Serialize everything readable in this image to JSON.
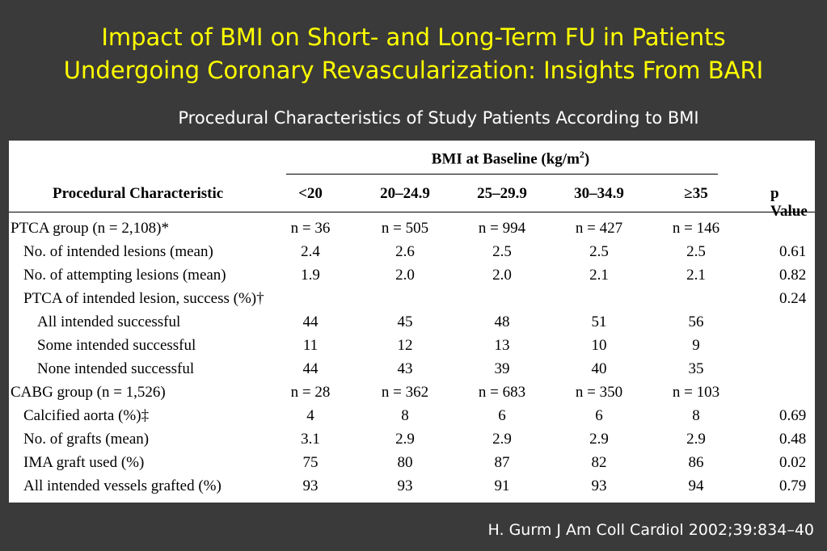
{
  "slide": {
    "title_line1": "Impact of BMI on Short- and Long-Term FU in Patients",
    "title_line2": "Undergoing Coronary Revascularization:  Insights From BARI",
    "subtitle": "Procedural Characteristics of Study Patients According to BMI",
    "citation": "H. Gurm J Am Coll Cardiol 2002;39:834–40",
    "colors": {
      "background": "#3a3a3a",
      "title": "#ffff00",
      "text": "#ffffff"
    }
  },
  "table": {
    "group_header": "BMI at Baseline (kg/m",
    "group_header_sup": "2",
    "group_header_end": ")",
    "first_col_header": "Procedural Characteristic",
    "columns": [
      "<20",
      "20–24.9",
      "25–29.9",
      "30–34.9",
      "≥35"
    ],
    "pvalue_header": "p Value",
    "rows": [
      {
        "label": "PTCA group (n = 2,108)*",
        "indent": 0,
        "values": [
          "n = 36",
          "n = 505",
          "n = 994",
          "n = 427",
          "n = 146"
        ],
        "p": ""
      },
      {
        "label": "No. of intended lesions (mean)",
        "indent": 1,
        "values": [
          "2.4",
          "2.6",
          "2.5",
          "2.5",
          "2.5"
        ],
        "p": "0.61"
      },
      {
        "label": "No. of attempting lesions (mean)",
        "indent": 1,
        "values": [
          "1.9",
          "2.0",
          "2.0",
          "2.1",
          "2.1"
        ],
        "p": "0.82"
      },
      {
        "label": "PTCA of intended lesion, success (%)†",
        "indent": 1,
        "values": [
          "",
          "",
          "",
          "",
          ""
        ],
        "p": "0.24"
      },
      {
        "label": "All intended successful",
        "indent": 2,
        "values": [
          "44",
          "45",
          "48",
          "51",
          "56"
        ],
        "p": ""
      },
      {
        "label": "Some intended successful",
        "indent": 2,
        "values": [
          "11",
          "12",
          "13",
          "10",
          "9"
        ],
        "p": ""
      },
      {
        "label": "None intended successful",
        "indent": 2,
        "values": [
          "44",
          "43",
          "39",
          "40",
          "35"
        ],
        "p": ""
      },
      {
        "label": "CABG group (n = 1,526)",
        "indent": 0,
        "values": [
          "n = 28",
          "n = 362",
          "n = 683",
          "n = 350",
          "n = 103"
        ],
        "p": ""
      },
      {
        "label": "Calcified aorta (%)‡",
        "indent": 1,
        "values": [
          "4",
          "8",
          "6",
          "6",
          "8"
        ],
        "p": "0.69"
      },
      {
        "label": "No. of grafts (mean)",
        "indent": 1,
        "values": [
          "3.1",
          "2.9",
          "2.9",
          "2.9",
          "2.9"
        ],
        "p": "0.48"
      },
      {
        "label": "IMA graft used (%)",
        "indent": 1,
        "values": [
          "75",
          "80",
          "87",
          "82",
          "86"
        ],
        "p": "0.02"
      },
      {
        "label": "All intended vessels grafted (%)",
        "indent": 1,
        "values": [
          "93",
          "93",
          "91",
          "93",
          "94"
        ],
        "p": "0.79"
      }
    ]
  }
}
